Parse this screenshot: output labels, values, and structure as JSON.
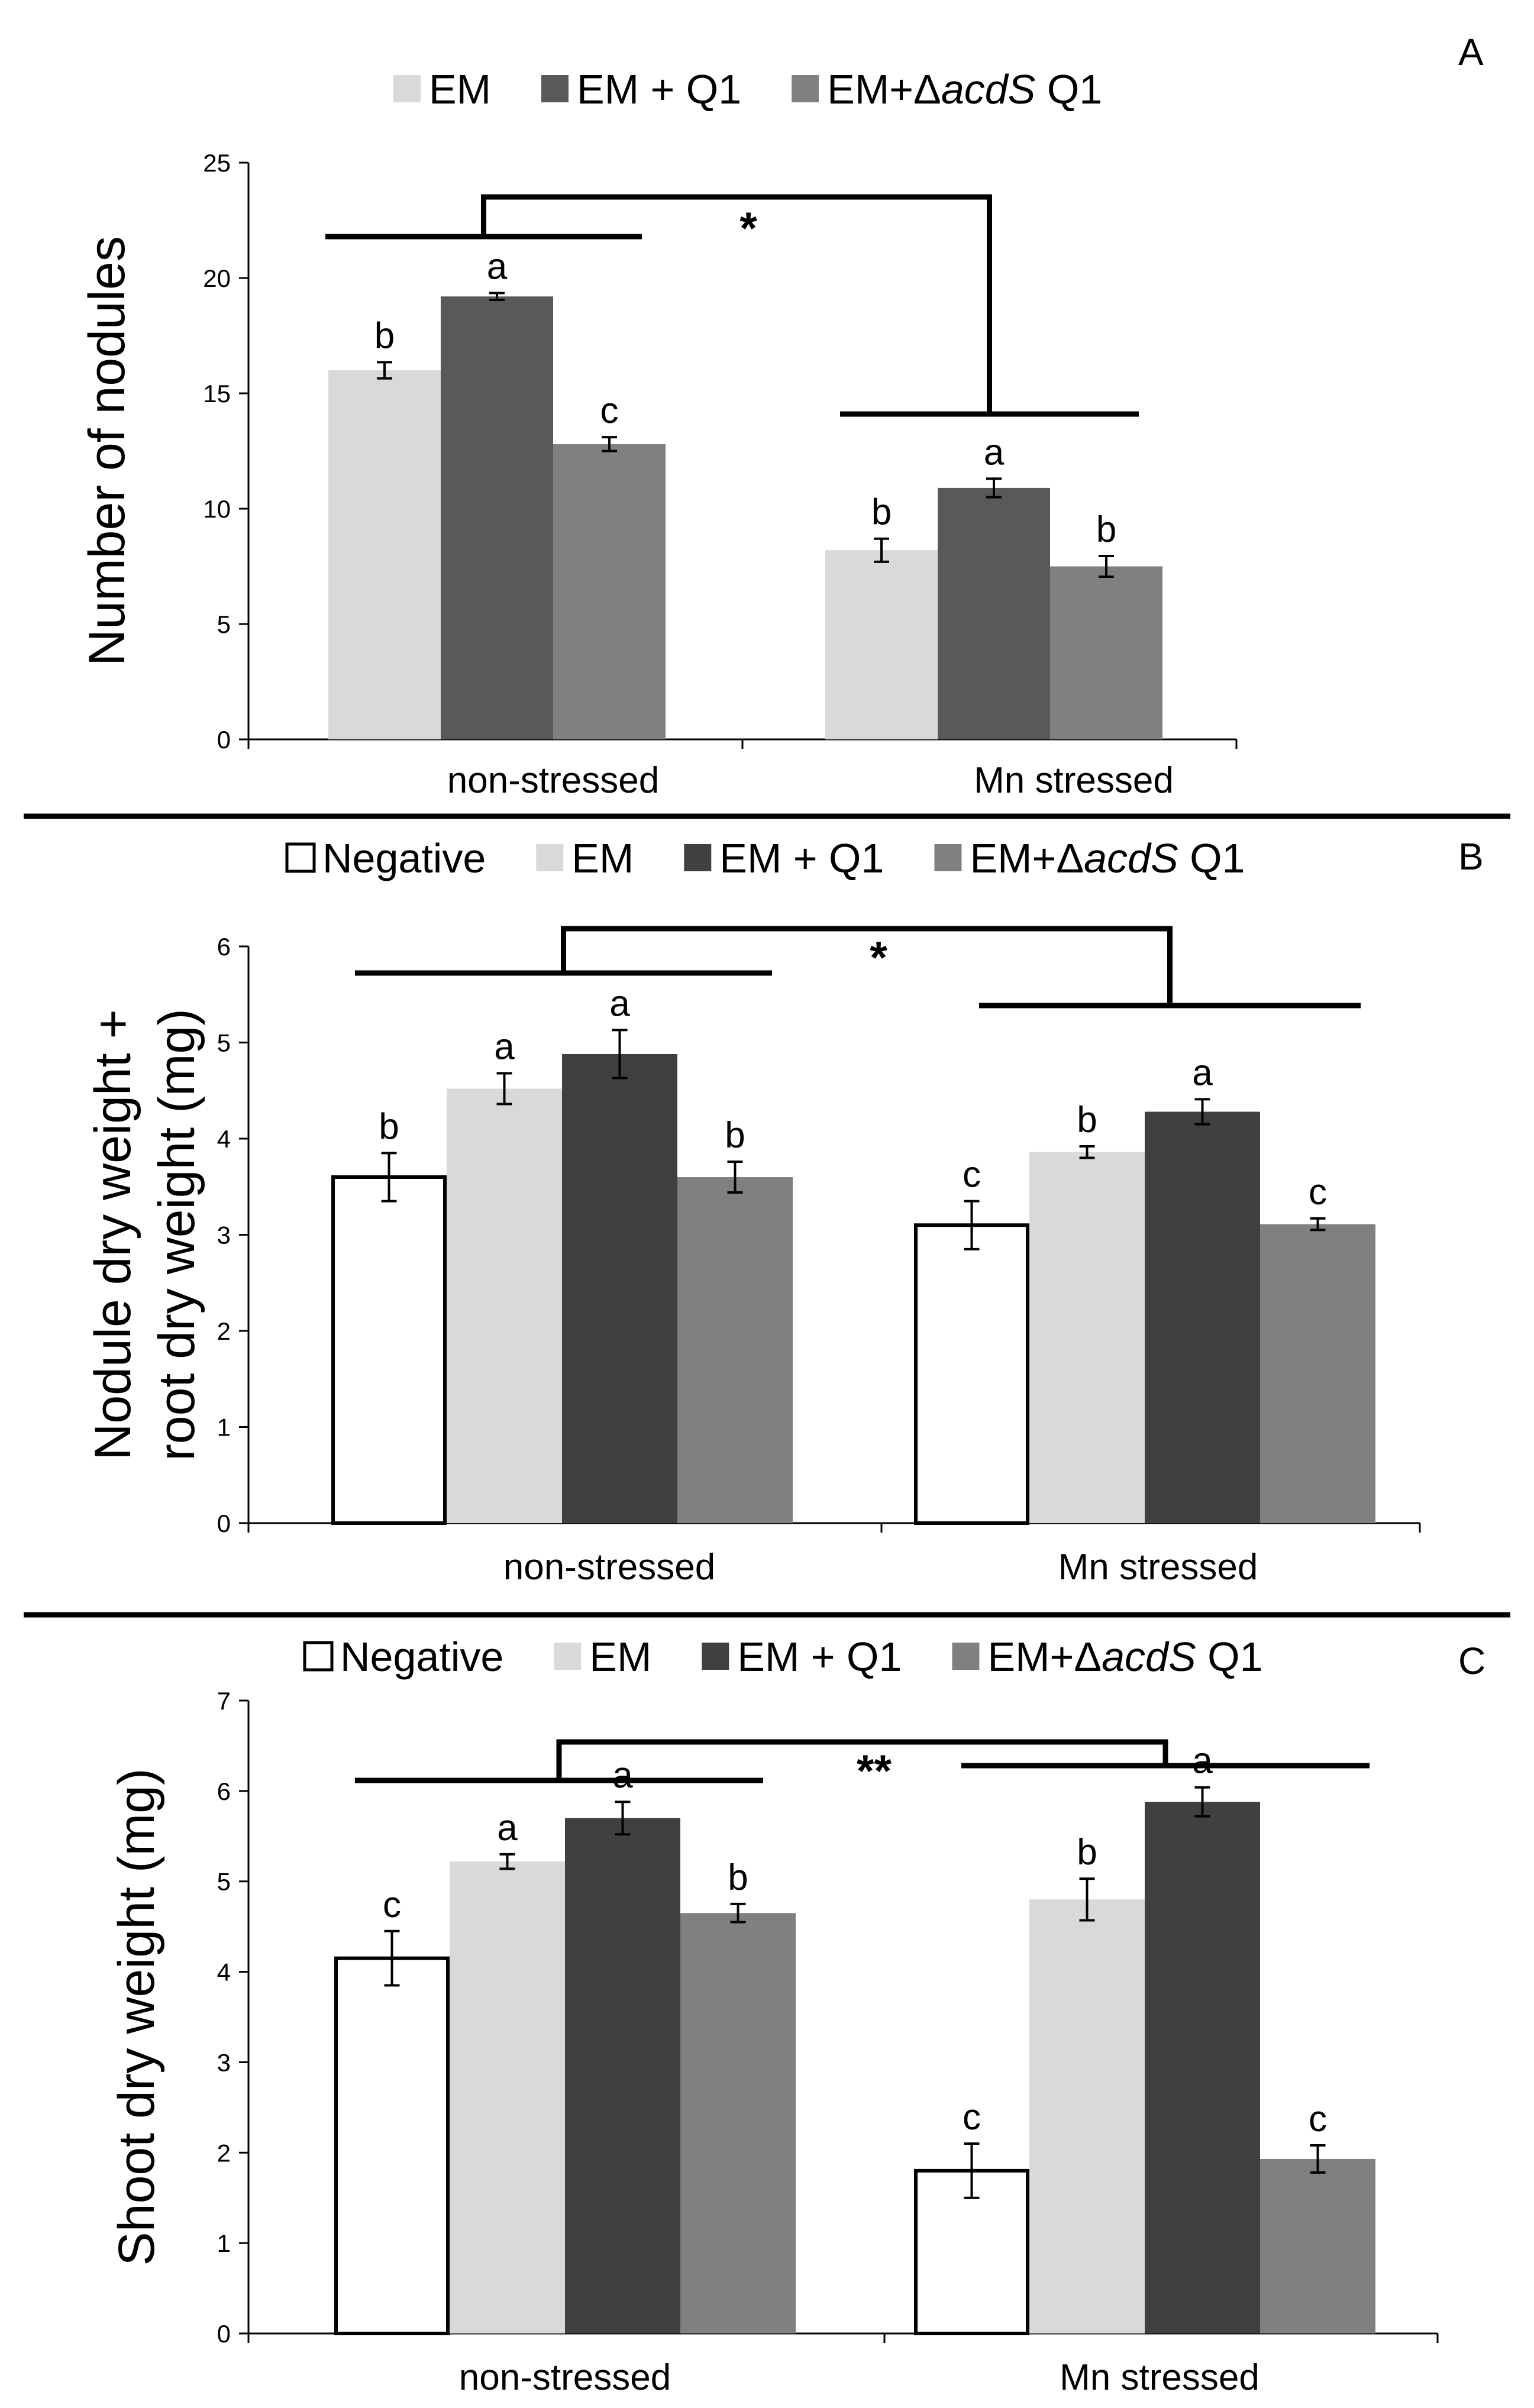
{
  "chart_data": [
    {
      "panel": "A",
      "type": "bar",
      "ylabel": "Number of nodules",
      "ylim": [
        0,
        25
      ],
      "yticks": [
        0,
        5,
        10,
        15,
        20,
        25
      ],
      "categories": [
        "non-stressed",
        "Mn stressed"
      ],
      "series": [
        {
          "name": "EM",
          "legend": [
            "EM"
          ],
          "color": "#d9d9d9",
          "values": [
            16.0,
            8.2
          ],
          "errors": [
            0.35,
            0.5
          ],
          "letters": [
            "b",
            "b"
          ]
        },
        {
          "name": "EM + Q1",
          "legend": [
            "EM + Q1"
          ],
          "color": "#595959",
          "values": [
            19.2,
            10.9
          ],
          "errors": [
            0.15,
            0.4
          ],
          "letters": [
            "a",
            "a"
          ]
        },
        {
          "name": "EM+ΔacdS Q1",
          "legend": [
            "EM",
            "+",
            "Δ",
            "acdS",
            " Q1"
          ],
          "color": "#808080",
          "values": [
            12.8,
            7.5
          ],
          "errors": [
            0.3,
            0.45
          ],
          "letters": [
            "c",
            "b"
          ]
        }
      ],
      "comparison": {
        "left": "non-stressed",
        "right": "Mn stressed",
        "label": "*"
      }
    },
    {
      "panel": "B",
      "type": "bar",
      "ylabel": [
        "Nodule dry weight +",
        "root dry weight (mg)"
      ],
      "ylim": [
        0,
        6
      ],
      "yticks": [
        0,
        1,
        2,
        3,
        4,
        5,
        6
      ],
      "categories": [
        "non-stressed",
        "Mn stressed"
      ],
      "series": [
        {
          "name": "Negative",
          "legend": [
            "Negative"
          ],
          "color": "#ffffff",
          "values": [
            3.6,
            3.1
          ],
          "errors": [
            0.25,
            0.25
          ],
          "letters": [
            "b",
            "c"
          ]
        },
        {
          "name": "EM",
          "legend": [
            "EM"
          ],
          "color": "#d9d9d9",
          "values": [
            4.52,
            3.86
          ],
          "errors": [
            0.16,
            0.06
          ],
          "letters": [
            "a",
            "b"
          ]
        },
        {
          "name": "EM + Q1",
          "legend": [
            "EM + Q1"
          ],
          "color": "#404040",
          "values": [
            4.88,
            4.28
          ],
          "errors": [
            0.25,
            0.13
          ],
          "letters": [
            "a",
            "a"
          ]
        },
        {
          "name": "EM+ΔacdS Q1",
          "legend": [
            "EM",
            "+",
            "Δ",
            "acdS",
            " Q1"
          ],
          "color": "#808080",
          "values": [
            3.6,
            3.11
          ],
          "errors": [
            0.16,
            0.06
          ],
          "letters": [
            "b",
            "c"
          ]
        }
      ],
      "comparison": {
        "left": "non-stressed",
        "right": "Mn stressed",
        "label": "*"
      }
    },
    {
      "panel": "C",
      "type": "bar",
      "ylabel": "Shoot dry weight (mg)",
      "ylim": [
        0,
        7
      ],
      "yticks": [
        0,
        1,
        2,
        3,
        4,
        5,
        6,
        7
      ],
      "categories": [
        "non-stressed",
        "Mn stressed"
      ],
      "series": [
        {
          "name": "Negative",
          "legend": [
            "Negative"
          ],
          "color": "#ffffff",
          "values": [
            4.15,
            1.8
          ],
          "errors": [
            0.3,
            0.3
          ],
          "letters": [
            "c",
            "c"
          ]
        },
        {
          "name": "EM",
          "legend": [
            "EM"
          ],
          "color": "#d9d9d9",
          "values": [
            5.22,
            4.8
          ],
          "errors": [
            0.08,
            0.23
          ],
          "letters": [
            "a",
            "b"
          ]
        },
        {
          "name": "EM + Q1",
          "legend": [
            "EM + Q1"
          ],
          "color": "#404040",
          "values": [
            5.7,
            5.88
          ],
          "errors": [
            0.18,
            0.16
          ],
          "letters": [
            "a",
            "a"
          ]
        },
        {
          "name": "EM+ΔacdS Q1",
          "legend": [
            "EM",
            "+",
            "Δ",
            "acdS",
            " Q1"
          ],
          "color": "#808080",
          "values": [
            4.65,
            1.93
          ],
          "errors": [
            0.1,
            0.15
          ],
          "letters": [
            "b",
            "c"
          ]
        }
      ],
      "comparison": {
        "left": "non-stressed",
        "right": "Mn stressed",
        "label": "**"
      }
    }
  ]
}
